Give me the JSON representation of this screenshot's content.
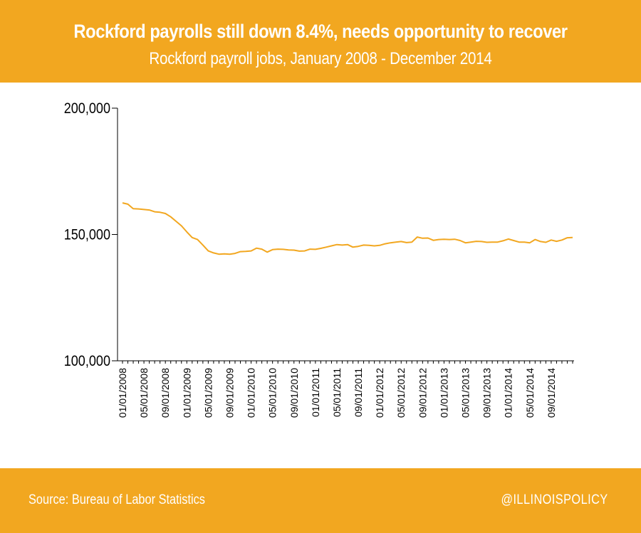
{
  "header": {
    "title": "Rockford payrolls still down 8.4%, needs opportunity to recover",
    "subtitle": "Rockford payroll jobs, January 2008 - December 2014"
  },
  "footer": {
    "source": "Source: Bureau of Labor Statistics",
    "handle": "@ILLINOISPOLICY"
  },
  "colors": {
    "accent": "#f2a720",
    "line": "#f2a720",
    "text": "#ffffff"
  },
  "chart_data": {
    "type": "line",
    "title": "Rockford payrolls still down 8.4%, needs opportunity to recover",
    "subtitle": "Rockford payroll jobs, January 2008 - December 2014",
    "xlabel": "",
    "ylabel": "",
    "ylim": [
      100000,
      200000
    ],
    "y_ticks": [
      "100,000",
      "150,000",
      "200,000"
    ],
    "x_tick_labels": [
      "01/01/2008",
      "05/01/2008",
      "09/01/2008",
      "01/01/2009",
      "05/01/2009",
      "09/01/2009",
      "01/01/2010",
      "05/01/2010",
      "09/01/2010",
      "01/01/2011",
      "05/01/2011",
      "09/01/2011",
      "01/01/2012",
      "05/01/2012",
      "09/01/2012",
      "01/01/2013",
      "05/01/2013",
      "09/01/2013",
      "01/01/2014",
      "05/01/2014",
      "09/01/2014"
    ],
    "x_start": "2008-01",
    "x_end": "2014-12",
    "grid": false,
    "legend": "none",
    "series": [
      {
        "values": [
          162500,
          162000,
          160200,
          160100,
          159900,
          159700,
          159000,
          158800,
          158300,
          157000,
          155200,
          153400,
          151000,
          148800,
          148000,
          145800,
          143500,
          142700,
          142200,
          142300,
          142200,
          142500,
          143200,
          143300,
          143500,
          144600,
          144200,
          143000,
          144000,
          144200,
          144100,
          143900,
          143800,
          143400,
          143500,
          144200,
          144100,
          144500,
          145000,
          145500,
          146000,
          145800,
          146000,
          145000,
          145300,
          145800,
          145700,
          145500,
          145700,
          146300,
          146700,
          147000,
          147200,
          146800,
          147000,
          149000,
          148500,
          148600,
          147700,
          148000,
          148100,
          148000,
          148100,
          147600,
          146700,
          147000,
          147300,
          147200,
          146900,
          147000,
          147000,
          147500,
          148200,
          147600,
          147000,
          147000,
          146700,
          148000,
          147200,
          146900,
          147800,
          147300,
          147800,
          148700,
          148800
        ]
      }
    ]
  }
}
